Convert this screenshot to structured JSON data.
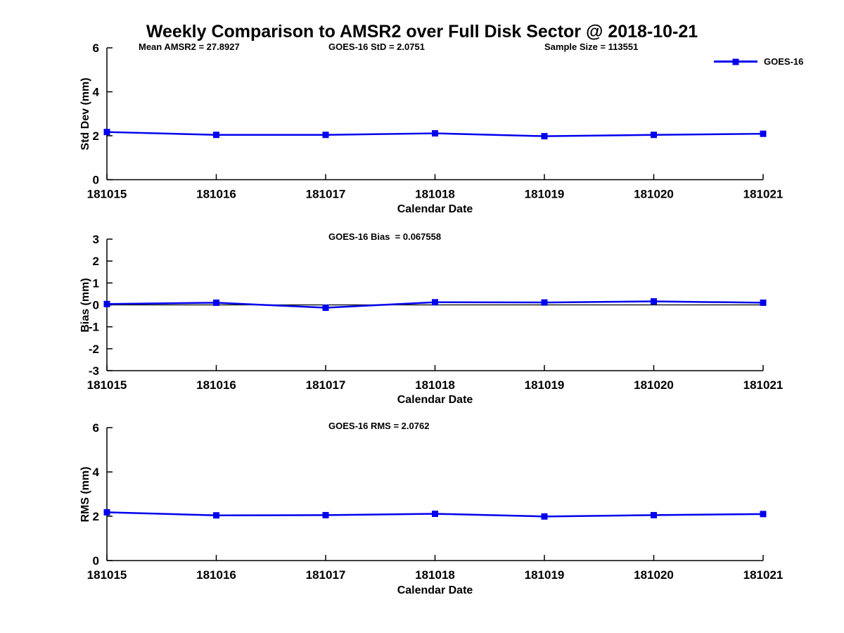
{
  "title": "Weekly Comparison to AMSR2 over Full Disk Sector @ 2018-10-21",
  "legend": {
    "label": "GOES-16",
    "color": "#0000EE",
    "position": "top-right",
    "marker": "square"
  },
  "axis_color": "#000000",
  "chart_data": [
    {
      "type": "line",
      "name": "std-dev-panel",
      "categories": [
        "181015",
        "181016",
        "181017",
        "181018",
        "181019",
        "181020",
        "181021"
      ],
      "series": [
        {
          "name": "GOES-16",
          "color": "#0000EE",
          "marker": "square",
          "values": [
            2.17,
            2.04,
            2.04,
            2.11,
            1.98,
            2.04,
            2.09
          ]
        }
      ],
      "title": "",
      "xlabel": "Calendar Date",
      "ylabel": "Std Dev (mm)",
      "ylim": [
        0,
        6
      ],
      "yticks": [
        0,
        2,
        4,
        6
      ],
      "grid": false,
      "zero_line": false,
      "annotations": [
        {
          "text": "Mean AMSR2 = 27.8927"
        },
        {
          "text": "GOES-16 StD = 2.0751"
        },
        {
          "text": "Sample Size = 113551"
        }
      ]
    },
    {
      "type": "line",
      "name": "bias-panel",
      "categories": [
        "181015",
        "181016",
        "181017",
        "181018",
        "181019",
        "181020",
        "181021"
      ],
      "series": [
        {
          "name": "GOES-16",
          "color": "#0000EE",
          "marker": "square",
          "values": [
            0.04,
            0.1,
            -0.13,
            0.12,
            0.11,
            0.16,
            0.1
          ]
        }
      ],
      "title": "",
      "xlabel": "Calendar Date",
      "ylabel": "Bias (mm)",
      "ylim": [
        -3,
        3
      ],
      "yticks": [
        -3,
        -2,
        -1,
        0,
        1,
        2,
        3
      ],
      "grid": false,
      "zero_line": true,
      "annotations": [
        {
          "text": "GOES-16 Bias  = 0.067558"
        }
      ]
    },
    {
      "type": "line",
      "name": "rms-panel",
      "categories": [
        "181015",
        "181016",
        "181017",
        "181018",
        "181019",
        "181020",
        "181021"
      ],
      "series": [
        {
          "name": "GOES-16",
          "color": "#0000EE",
          "marker": "square",
          "values": [
            2.18,
            2.04,
            2.05,
            2.11,
            1.99,
            2.05,
            2.1
          ]
        }
      ],
      "title": "",
      "xlabel": "Calendar Date",
      "ylabel": "RMS (mm)",
      "ylim": [
        0,
        6
      ],
      "yticks": [
        0,
        2,
        4,
        6
      ],
      "grid": false,
      "zero_line": false,
      "annotations": [
        {
          "text": "GOES-16 RMS = 2.0762"
        }
      ]
    }
  ]
}
